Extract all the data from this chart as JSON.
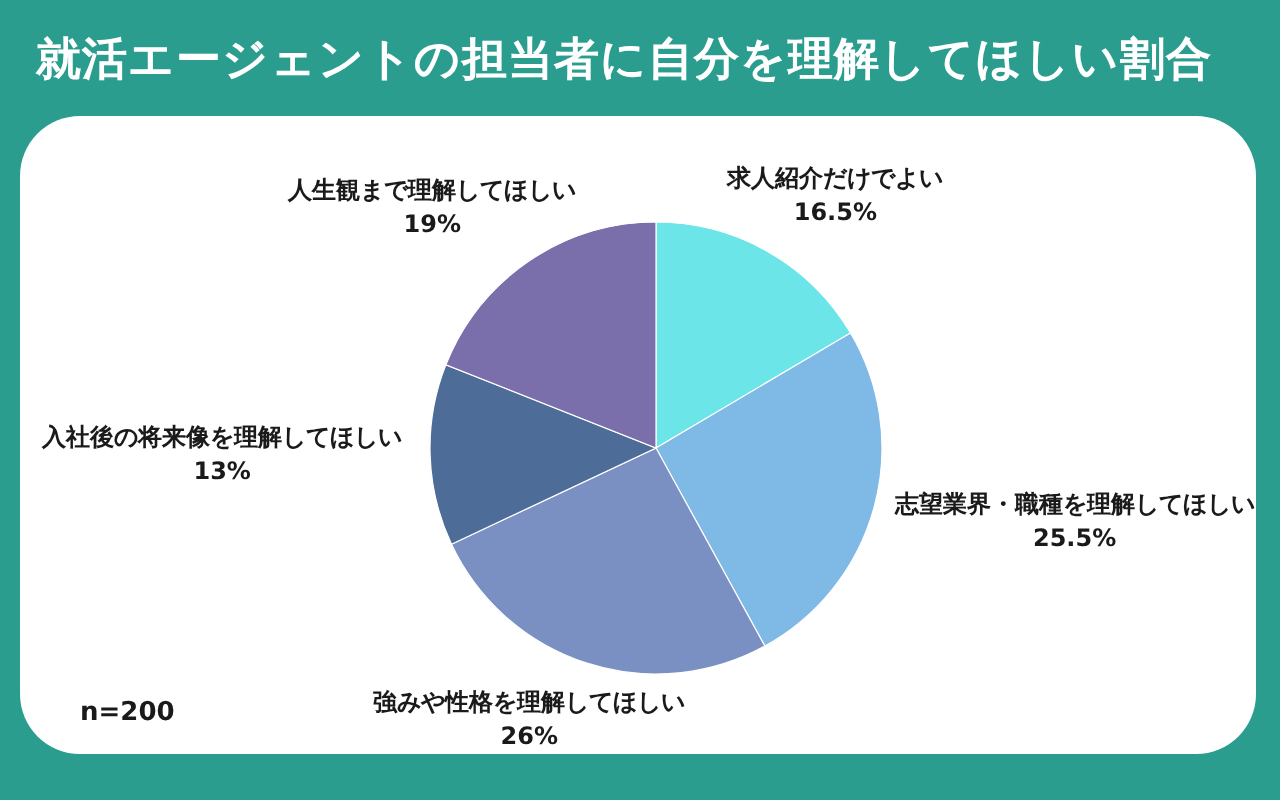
{
  "chart_data": {
    "type": "pie",
    "title": "就活エージェントの担当者に自分を理解してほしい割合",
    "categories": [
      "求人紹介だけでよい",
      "志望業界・職種を理解してほしい",
      "強みや性格を理解してほしい",
      "入社後の将来像を理解してほしい",
      "人生観まで理解してほしい"
    ],
    "values": [
      16.5,
      25.5,
      26,
      13,
      19
    ],
    "value_labels": [
      "16.5%",
      "25.5%",
      "26%",
      "13%",
      "19%"
    ],
    "colors": [
      "#6ce5e8",
      "#7fb9e6",
      "#7b90c2",
      "#4d6d98",
      "#7b6fab"
    ],
    "annotations": [
      "n=200"
    ]
  }
}
